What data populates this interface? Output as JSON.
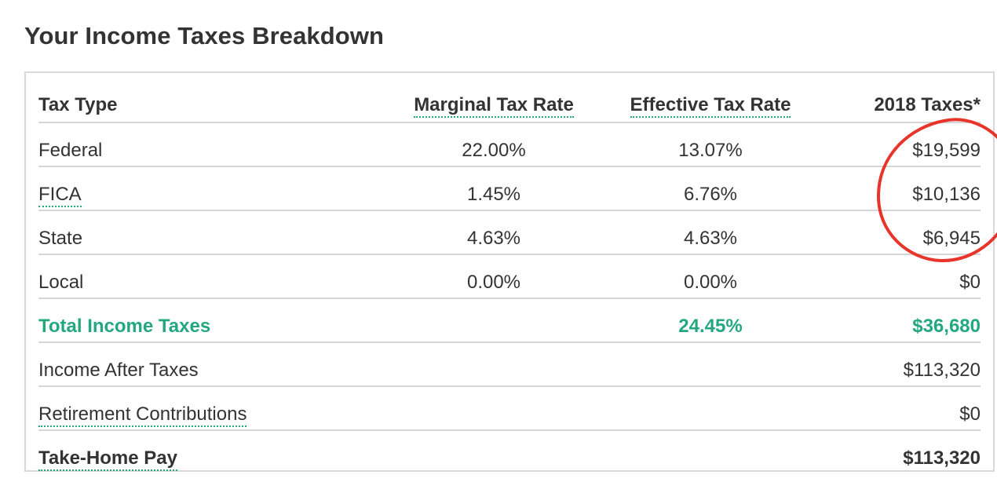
{
  "title": "Your Income Taxes Breakdown",
  "columns": {
    "type": "Tax Type",
    "marginal": "Marginal Tax Rate",
    "effective": "Effective Tax Rate",
    "taxes": "2018 Taxes*"
  },
  "rows": {
    "federal": {
      "label": "Federal",
      "marginal": "22.00%",
      "effective": "13.07%",
      "taxes": "$19,599"
    },
    "fica": {
      "label": "FICA",
      "marginal": "1.45%",
      "effective": "6.76%",
      "taxes": "$10,136"
    },
    "state": {
      "label": "State",
      "marginal": "4.63%",
      "effective": "4.63%",
      "taxes": "$6,945"
    },
    "local": {
      "label": "Local",
      "marginal": "0.00%",
      "effective": "0.00%",
      "taxes": "$0"
    },
    "total": {
      "label": "Total Income Taxes",
      "effective": "24.45%",
      "taxes": "$36,680"
    },
    "after": {
      "label": "Income After Taxes",
      "taxes": "$113,320"
    },
    "retirement": {
      "label": "Retirement Contributions",
      "taxes": "$0"
    },
    "takehome": {
      "label": "Take-Home Pay",
      "taxes": "$113,320"
    }
  },
  "colors": {
    "accent_green": "#23a87e",
    "annotation_red": "#e8352b",
    "border_gray": "#d6d6d6",
    "text": "#333333"
  }
}
